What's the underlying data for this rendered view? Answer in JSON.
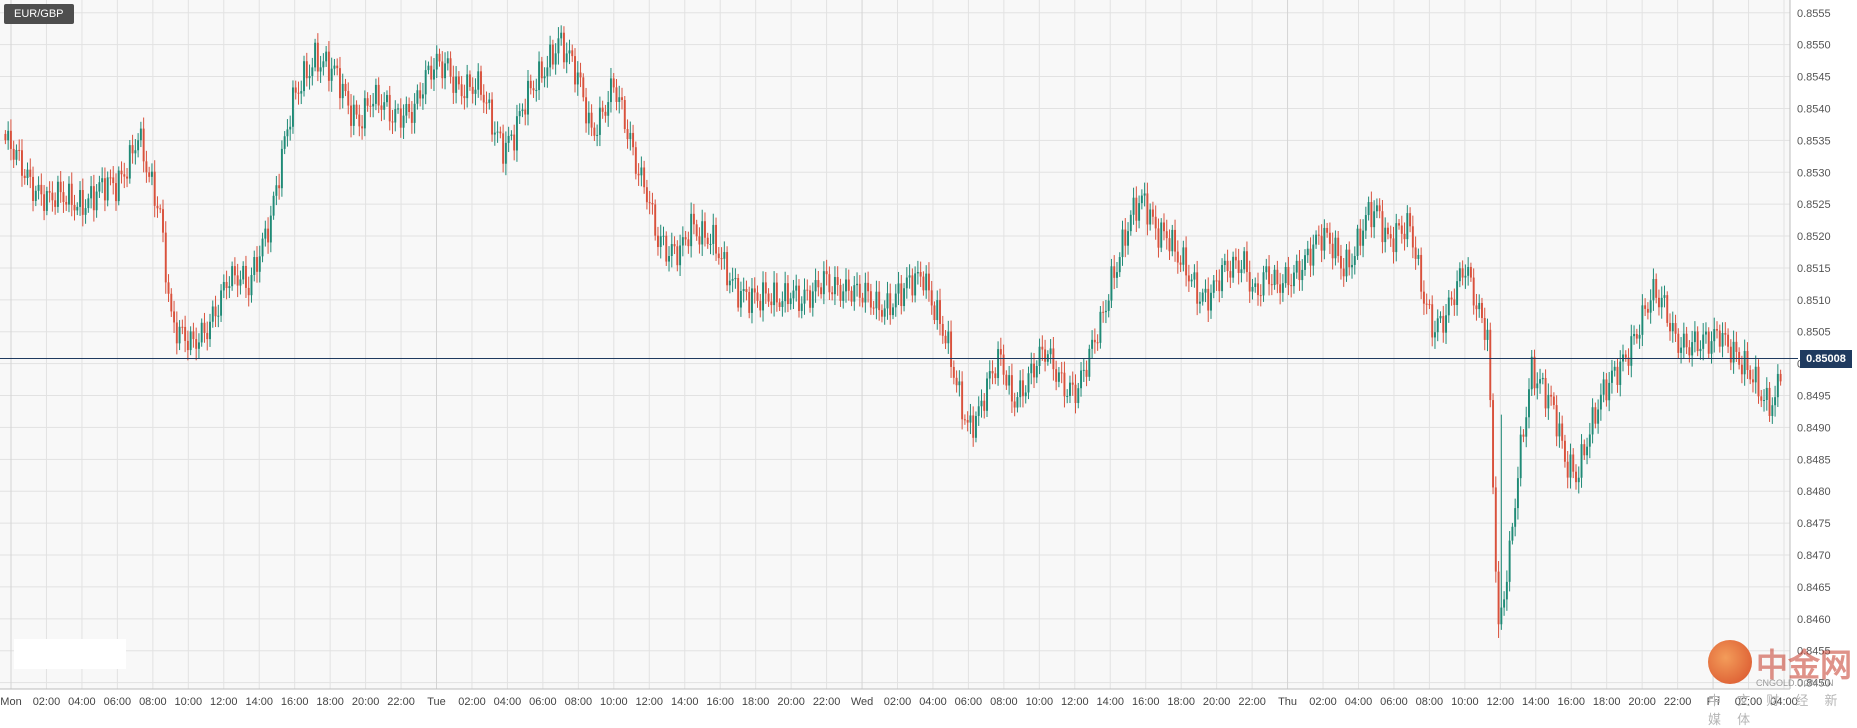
{
  "symbol": "EUR/GBP",
  "current_price_label": "0.85008",
  "watermark": {
    "brand_text": "中金网",
    "site_text": "CNGOLD.COM.CN",
    "tagline_text": "中 文 财 经 新 媒 体"
  },
  "colors": {
    "up": "#1f8a76",
    "down": "#d9513c",
    "grid": "#e2e2e2",
    "background": "#f8f8f8",
    "price_line": "#1f3a5f"
  },
  "chart_data": {
    "type": "candlestick",
    "title": "EUR/GBP",
    "xlabel": "",
    "ylabel": "",
    "ylim": [
      0.8449,
      0.8557
    ],
    "y_ticks": [
      0.8555,
      0.855,
      0.8545,
      0.854,
      0.8535,
      0.853,
      0.8525,
      0.852,
      0.8515,
      0.851,
      0.8505,
      0.85,
      0.8495,
      0.849,
      0.8485,
      0.848,
      0.8475,
      0.847,
      0.8465,
      0.846,
      0.8455,
      0.845
    ],
    "y_tick_labels": [
      "0.8555",
      "0.8550",
      "0.8545",
      "0.8540",
      "0.8535",
      "0.8530",
      "0.8525",
      "0.8520",
      "0.8515",
      "0.8510",
      "0.8505",
      "0.8500",
      "0.8495",
      "0.8490",
      "0.8485",
      "0.8480",
      "0.8475",
      "0.8470",
      "0.8465",
      "0.8460",
      "0.8455",
      "0.8450"
    ],
    "x_ticks": [
      "Mon",
      "02:00",
      "04:00",
      "06:00",
      "08:00",
      "10:00",
      "12:00",
      "14:00",
      "16:00",
      "18:00",
      "20:00",
      "22:00",
      "Tue",
      "02:00",
      "04:00",
      "06:00",
      "08:00",
      "10:00",
      "12:00",
      "14:00",
      "16:00",
      "18:00",
      "20:00",
      "22:00",
      "Wed",
      "02:00",
      "04:00",
      "06:00",
      "08:00",
      "10:00",
      "12:00",
      "14:00",
      "16:00",
      "18:00",
      "20:00",
      "22:00",
      "Thu",
      "02:00",
      "04:00",
      "06:00",
      "08:00",
      "10:00",
      "12:00",
      "14:00",
      "16:00",
      "18:00",
      "20:00",
      "22:00",
      "Fri",
      "02:00",
      "04:00"
    ],
    "last_price": 0.85008,
    "grid": true,
    "series": [
      {
        "values": [
          [
            0,
            0.8534
          ],
          [
            8,
            0.853
          ],
          [
            16,
            0.8525
          ],
          [
            24,
            0.8526
          ],
          [
            32,
            0.8526
          ],
          [
            40,
            0.8528
          ],
          [
            48,
            0.8536
          ],
          [
            52,
            0.8528
          ],
          [
            56,
            0.8523
          ],
          [
            60,
            0.8508
          ],
          [
            64,
            0.8505
          ],
          [
            68,
            0.8502
          ],
          [
            72,
            0.8504
          ],
          [
            76,
            0.8509
          ],
          [
            80,
            0.8514
          ],
          [
            84,
            0.8513
          ],
          [
            88,
            0.8511
          ],
          [
            92,
            0.8518
          ],
          [
            96,
            0.8524
          ],
          [
            100,
            0.8532
          ],
          [
            104,
            0.854
          ],
          [
            108,
            0.8545
          ],
          [
            112,
            0.8549
          ],
          [
            116,
            0.8547
          ],
          [
            120,
            0.8544
          ],
          [
            124,
            0.854
          ],
          [
            128,
            0.8539
          ],
          [
            132,
            0.8542
          ],
          [
            136,
            0.854
          ],
          [
            140,
            0.8538
          ],
          [
            144,
            0.854
          ],
          [
            148,
            0.8541
          ],
          [
            152,
            0.8544
          ],
          [
            156,
            0.8546
          ],
          [
            160,
            0.8547
          ],
          [
            164,
            0.8544
          ],
          [
            168,
            0.8543
          ],
          [
            172,
            0.8542
          ],
          [
            176,
            0.8538
          ],
          [
            180,
            0.8535
          ],
          [
            184,
            0.8536
          ],
          [
            188,
            0.854
          ],
          [
            192,
            0.8544
          ],
          [
            196,
            0.8548
          ],
          [
            200,
            0.8551
          ],
          [
            204,
            0.8547
          ],
          [
            208,
            0.8543
          ],
          [
            212,
            0.8537
          ],
          [
            216,
            0.854
          ],
          [
            220,
            0.8543
          ],
          [
            224,
            0.8537
          ],
          [
            228,
            0.8532
          ],
          [
            232,
            0.8528
          ],
          [
            236,
            0.8519
          ],
          [
            240,
            0.8516
          ],
          [
            244,
            0.8518
          ],
          [
            248,
            0.8523
          ],
          [
            252,
            0.852
          ],
          [
            256,
            0.8518
          ],
          [
            260,
            0.8515
          ],
          [
            264,
            0.8513
          ],
          [
            268,
            0.8511
          ],
          [
            272,
            0.8509
          ],
          [
            276,
            0.851
          ],
          [
            280,
            0.8511
          ],
          [
            284,
            0.8512
          ],
          [
            288,
            0.8509
          ],
          [
            292,
            0.851
          ],
          [
            296,
            0.8514
          ],
          [
            300,
            0.8513
          ],
          [
            304,
            0.8511
          ],
          [
            308,
            0.851
          ],
          [
            312,
            0.8511
          ],
          [
            316,
            0.851
          ],
          [
            320,
            0.8509
          ],
          [
            324,
            0.851
          ],
          [
            328,
            0.8513
          ],
          [
            332,
            0.8515
          ],
          [
            336,
            0.8509
          ],
          [
            340,
            0.8503
          ],
          [
            344,
            0.8496
          ],
          [
            348,
            0.8491
          ],
          [
            352,
            0.8493
          ],
          [
            356,
            0.8497
          ],
          [
            360,
            0.85
          ],
          [
            364,
            0.8495
          ],
          [
            368,
            0.8497
          ],
          [
            372,
            0.8499
          ],
          [
            376,
            0.8501
          ],
          [
            380,
            0.8499
          ],
          [
            384,
            0.8497
          ],
          [
            388,
            0.8496
          ],
          [
            392,
            0.85
          ],
          [
            396,
            0.8506
          ],
          [
            400,
            0.8514
          ],
          [
            404,
            0.8519
          ],
          [
            408,
            0.8523
          ],
          [
            412,
            0.8525
          ],
          [
            416,
            0.8522
          ],
          [
            420,
            0.8521
          ],
          [
            424,
            0.8516
          ],
          [
            428,
            0.8513
          ],
          [
            432,
            0.8511
          ],
          [
            436,
            0.8512
          ],
          [
            440,
            0.8514
          ],
          [
            444,
            0.8514
          ],
          [
            448,
            0.8516
          ],
          [
            452,
            0.8512
          ],
          [
            456,
            0.8514
          ],
          [
            460,
            0.8511
          ],
          [
            464,
            0.8513
          ],
          [
            468,
            0.8516
          ],
          [
            472,
            0.8518
          ],
          [
            476,
            0.8519
          ],
          [
            480,
            0.8518
          ],
          [
            484,
            0.8516
          ],
          [
            488,
            0.8518
          ],
          [
            492,
            0.8522
          ],
          [
            496,
            0.8523
          ],
          [
            500,
            0.852
          ],
          [
            504,
            0.8522
          ],
          [
            508,
            0.8521
          ],
          [
            512,
            0.8511
          ],
          [
            516,
            0.8506
          ],
          [
            520,
            0.8508
          ],
          [
            524,
            0.8511
          ],
          [
            528,
            0.8514
          ],
          [
            532,
            0.8509
          ],
          [
            536,
            0.8506
          ],
          [
            540,
            0.8458
          ],
          [
            544,
            0.8469
          ],
          [
            548,
            0.8486
          ],
          [
            552,
            0.85
          ],
          [
            556,
            0.8497
          ],
          [
            560,
            0.8492
          ],
          [
            564,
            0.8484
          ],
          [
            568,
            0.8483
          ],
          [
            572,
            0.8489
          ],
          [
            576,
            0.8493
          ],
          [
            580,
            0.8496
          ],
          [
            584,
            0.85
          ],
          [
            588,
            0.8504
          ],
          [
            592,
            0.8507
          ],
          [
            596,
            0.851
          ],
          [
            600,
            0.8509
          ],
          [
            604,
            0.8505
          ],
          [
            608,
            0.8503
          ],
          [
            612,
            0.8502
          ],
          [
            616,
            0.8503
          ],
          [
            620,
            0.8506
          ],
          [
            624,
            0.8503
          ],
          [
            628,
            0.8499
          ],
          [
            632,
            0.8497
          ],
          [
            636,
            0.8495
          ],
          [
            640,
            0.8495
          ],
          [
            642,
            0.85
          ]
        ]
      }
    ]
  }
}
